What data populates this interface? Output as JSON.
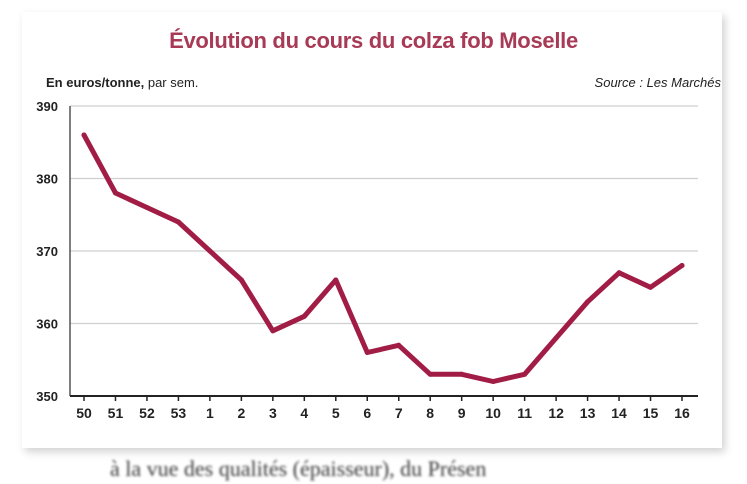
{
  "title": "Évolution du cours du colza fob Moselle",
  "unit_bold": "En euros/tonne,",
  "unit_rest": " par sem.",
  "source": "Source : Les Marchés",
  "colors": {
    "title": "#a83a55",
    "line": "#a11d45",
    "grid": "#cfcfcf",
    "axis": "#555555"
  },
  "bottom_text": "à la vue des qualités (épaisseur), du Présen",
  "chart_data": {
    "type": "line",
    "title": "Évolution du cours du colza fob Moselle",
    "xlabel": "",
    "ylabel": "En euros/tonne, par sem.",
    "categories": [
      "50",
      "51",
      "52",
      "53",
      "1",
      "2",
      "3",
      "4",
      "5",
      "6",
      "7",
      "8",
      "9",
      "10",
      "11",
      "12",
      "13",
      "14",
      "15",
      "16"
    ],
    "series": [
      {
        "values": [
          386,
          378,
          376,
          374,
          370,
          366,
          359,
          361,
          366,
          356,
          357,
          353,
          353,
          352,
          353,
          358,
          363,
          367,
          365,
          368
        ]
      }
    ],
    "ylim": [
      350,
      390
    ],
    "yticks": [
      390,
      380,
      370,
      360,
      350
    ],
    "grid": true,
    "legend": "none"
  }
}
